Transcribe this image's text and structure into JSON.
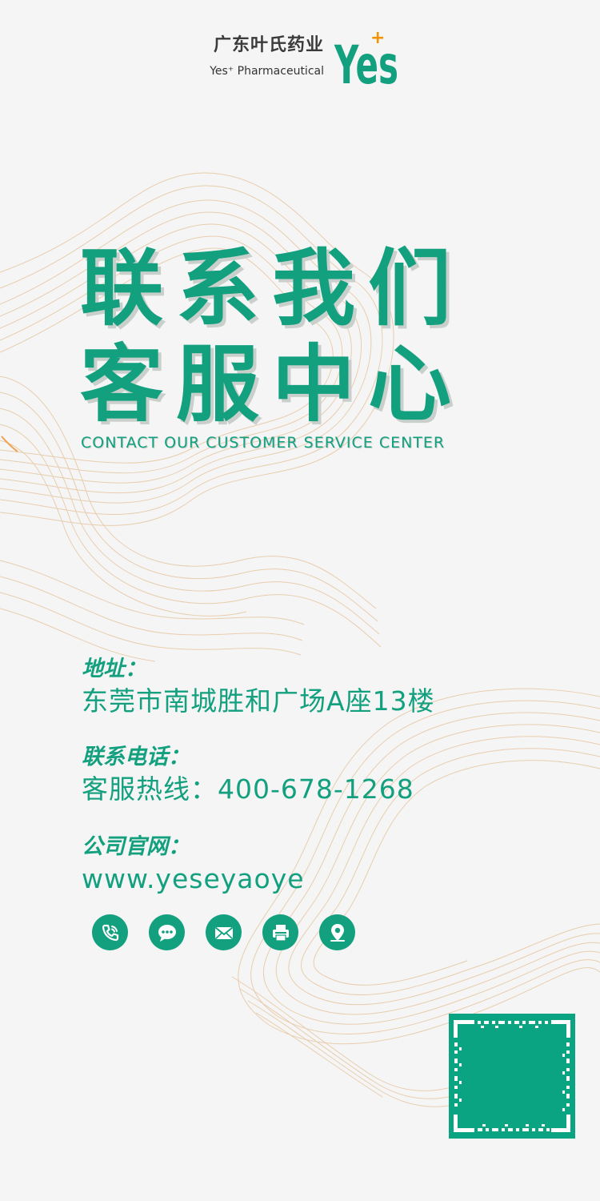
{
  "brand": {
    "name_cn": "广东叶氏药业",
    "name_en": "Yes⁺ Pharmaceutical",
    "logo_text": "Yes",
    "logo_plus": "+"
  },
  "title": {
    "line1": "联系我们",
    "line2": "客服中心",
    "subtitle": "CONTACT OUR CUSTOMER SERVICE CENTER"
  },
  "contact": {
    "address_label": "地址：",
    "address_value": "东莞市南城胜和广场A座13楼",
    "phone_label": "联系电话：",
    "phone_value": "客服热线：400-678-1268",
    "web_label": "公司官网：",
    "web_value": "www.yeseyaoye"
  },
  "icons": [
    "phone-icon",
    "chat-icon",
    "mail-icon",
    "fax-icon",
    "location-icon"
  ],
  "colors": {
    "primary": "#13a07f",
    "background": "#f5f5f5",
    "contour": "#e7c9a6",
    "logo_plus": "#f29400"
  }
}
